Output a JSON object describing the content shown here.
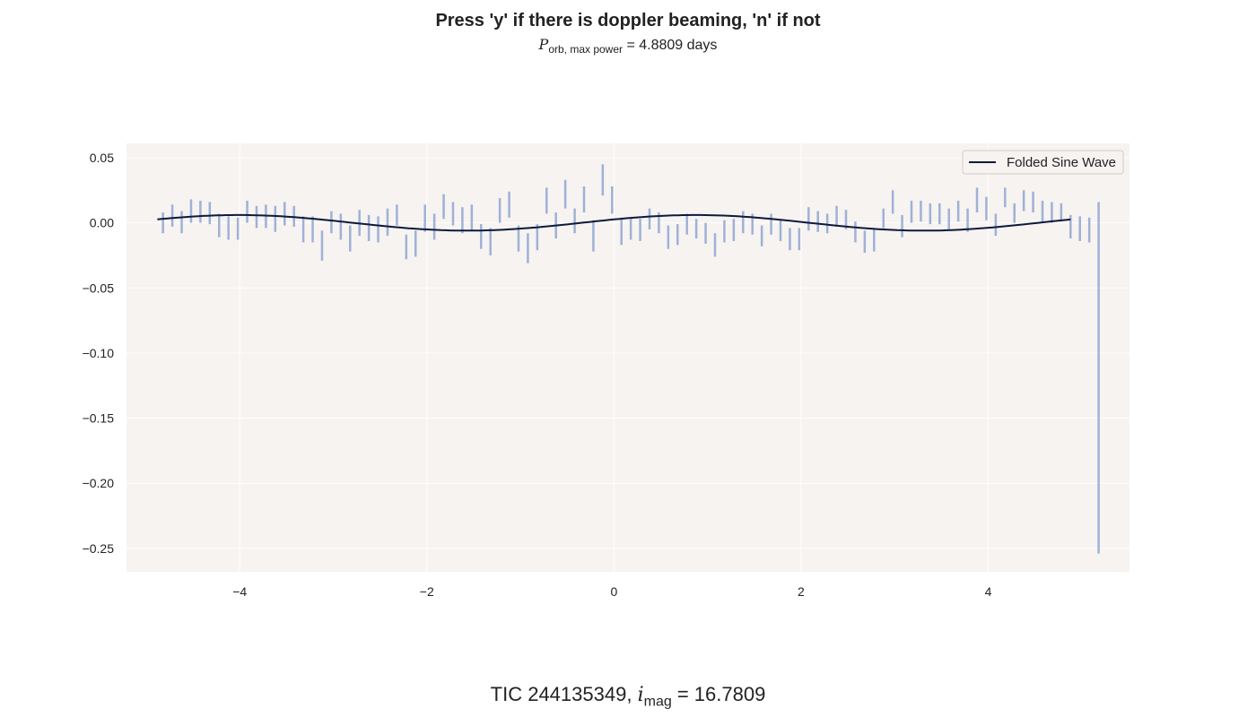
{
  "title": "Press 'y' if there is doppler beaming, 'n' if not",
  "subtitle": {
    "symbol": "P",
    "subscript": "orb, max power",
    "text": " = 4.8809 days"
  },
  "footer": {
    "prefix": "TIC 244135349, ",
    "symbol": "i",
    "subscript": "mag",
    "value": " = 16.7809"
  },
  "chart_data": {
    "type": "line",
    "xlim": [
      -5.21,
      5.51
    ],
    "ylim": [
      -0.268,
      0.061
    ],
    "x_ticks": [
      -4,
      -2,
      0,
      2,
      4
    ],
    "x_tick_labels": [
      "−4",
      "−2",
      "0",
      "2",
      "4"
    ],
    "y_ticks": [
      0.05,
      0.0,
      -0.05,
      -0.1,
      -0.15,
      -0.2,
      -0.25
    ],
    "y_tick_labels": [
      "0.05",
      "0.00",
      "−0.05",
      "−0.10",
      "−0.15",
      "−0.20",
      "−0.25"
    ],
    "grid": true,
    "legend_position": "top-right",
    "series": [
      {
        "name": "Folded Sine Wave",
        "type": "line",
        "color": "#0d1a3a",
        "amplitude": 0.006,
        "period": 4.8809,
        "x_range": [
          -4.88,
          4.88
        ]
      },
      {
        "name": "",
        "type": "errorbar",
        "color": "#9fb1d6",
        "points": [
          {
            "x": -4.82,
            "lo": -0.008,
            "hi": 0.008
          },
          {
            "x": -4.72,
            "lo": -0.003,
            "hi": 0.014
          },
          {
            "x": -4.62,
            "lo": -0.008,
            "hi": 0.009
          },
          {
            "x": -4.52,
            "lo": 0.0,
            "hi": 0.018
          },
          {
            "x": -4.42,
            "lo": 0.0,
            "hi": 0.017
          },
          {
            "x": -4.32,
            "lo": -0.001,
            "hi": 0.016
          },
          {
            "x": -4.22,
            "lo": -0.011,
            "hi": 0.007
          },
          {
            "x": -4.12,
            "lo": -0.013,
            "hi": 0.005
          },
          {
            "x": -4.02,
            "lo": -0.013,
            "hi": 0.004
          },
          {
            "x": -3.92,
            "lo": 0.0,
            "hi": 0.017
          },
          {
            "x": -3.82,
            "lo": -0.004,
            "hi": 0.013
          },
          {
            "x": -3.72,
            "lo": -0.004,
            "hi": 0.014
          },
          {
            "x": -3.62,
            "lo": -0.007,
            "hi": 0.013
          },
          {
            "x": -3.52,
            "lo": -0.002,
            "hi": 0.016
          },
          {
            "x": -3.42,
            "lo": -0.003,
            "hi": 0.013
          },
          {
            "x": -3.32,
            "lo": -0.015,
            "hi": 0.005
          },
          {
            "x": -3.22,
            "lo": -0.015,
            "hi": 0.005
          },
          {
            "x": -3.12,
            "lo": -0.029,
            "hi": -0.006
          },
          {
            "x": -3.02,
            "lo": -0.008,
            "hi": 0.009
          },
          {
            "x": -2.92,
            "lo": -0.013,
            "hi": 0.007
          },
          {
            "x": -2.82,
            "lo": -0.022,
            "hi": -0.002
          },
          {
            "x": -2.72,
            "lo": -0.01,
            "hi": 0.01
          },
          {
            "x": -2.62,
            "lo": -0.014,
            "hi": 0.006
          },
          {
            "x": -2.52,
            "lo": -0.015,
            "hi": 0.005
          },
          {
            "x": -2.42,
            "lo": -0.01,
            "hi": 0.011
          },
          {
            "x": -2.32,
            "lo": -0.002,
            "hi": 0.014
          },
          {
            "x": -2.22,
            "lo": -0.028,
            "hi": -0.009
          },
          {
            "x": -2.12,
            "lo": -0.026,
            "hi": -0.006
          },
          {
            "x": -2.02,
            "lo": -0.007,
            "hi": 0.014
          },
          {
            "x": -1.92,
            "lo": -0.013,
            "hi": 0.007
          },
          {
            "x": -1.82,
            "lo": 0.003,
            "hi": 0.022
          },
          {
            "x": -1.72,
            "lo": -0.002,
            "hi": 0.016
          },
          {
            "x": -1.62,
            "lo": -0.008,
            "hi": 0.012
          },
          {
            "x": -1.52,
            "lo": -0.006,
            "hi": 0.014
          },
          {
            "x": -1.42,
            "lo": -0.02,
            "hi": -0.001
          },
          {
            "x": -1.32,
            "lo": -0.025,
            "hi": -0.004
          },
          {
            "x": -1.22,
            "lo": 0.0,
            "hi": 0.019
          },
          {
            "x": -1.12,
            "lo": 0.004,
            "hi": 0.024
          },
          {
            "x": -1.02,
            "lo": -0.022,
            "hi": -0.002
          },
          {
            "x": -0.92,
            "lo": -0.031,
            "hi": -0.008
          },
          {
            "x": -0.82,
            "lo": -0.021,
            "hi": -0.001
          },
          {
            "x": -0.72,
            "lo": 0.007,
            "hi": 0.027
          },
          {
            "x": -0.62,
            "lo": -0.012,
            "hi": 0.008
          },
          {
            "x": -0.52,
            "lo": 0.011,
            "hi": 0.033
          },
          {
            "x": -0.42,
            "lo": -0.008,
            "hi": 0.011
          },
          {
            "x": -0.32,
            "lo": 0.008,
            "hi": 0.028
          },
          {
            "x": -0.22,
            "lo": -0.022,
            "hi": 0.002
          },
          {
            "x": -0.12,
            "lo": 0.021,
            "hi": 0.045
          },
          {
            "x": -0.02,
            "lo": 0.007,
            "hi": 0.028
          },
          {
            "x": 0.08,
            "lo": -0.017,
            "hi": 0.004
          },
          {
            "x": 0.18,
            "lo": -0.013,
            "hi": 0.004
          },
          {
            "x": 0.28,
            "lo": -0.014,
            "hi": 0.003
          },
          {
            "x": 0.38,
            "lo": -0.005,
            "hi": 0.011
          },
          {
            "x": 0.48,
            "lo": -0.008,
            "hi": 0.008
          },
          {
            "x": 0.58,
            "lo": -0.02,
            "hi": -0.002
          },
          {
            "x": 0.68,
            "lo": -0.017,
            "hi": -0.001
          },
          {
            "x": 0.78,
            "lo": -0.009,
            "hi": 0.007
          },
          {
            "x": 0.88,
            "lo": -0.012,
            "hi": 0.003
          },
          {
            "x": 0.98,
            "lo": -0.016,
            "hi": 0.0
          },
          {
            "x": 1.08,
            "lo": -0.026,
            "hi": -0.008
          },
          {
            "x": 1.18,
            "lo": -0.015,
            "hi": 0.002
          },
          {
            "x": 1.28,
            "lo": -0.014,
            "hi": 0.003
          },
          {
            "x": 1.38,
            "lo": -0.008,
            "hi": 0.009
          },
          {
            "x": 1.48,
            "lo": -0.009,
            "hi": 0.007
          },
          {
            "x": 1.58,
            "lo": -0.018,
            "hi": -0.002
          },
          {
            "x": 1.68,
            "lo": -0.009,
            "hi": 0.007
          },
          {
            "x": 1.78,
            "lo": -0.014,
            "hi": 0.002
          },
          {
            "x": 1.88,
            "lo": -0.021,
            "hi": -0.004
          },
          {
            "x": 1.98,
            "lo": -0.021,
            "hi": -0.004
          },
          {
            "x": 2.08,
            "lo": -0.006,
            "hi": 0.012
          },
          {
            "x": 2.18,
            "lo": -0.007,
            "hi": 0.009
          },
          {
            "x": 2.28,
            "lo": -0.008,
            "hi": 0.007
          },
          {
            "x": 2.38,
            "lo": -0.003,
            "hi": 0.013
          },
          {
            "x": 2.48,
            "lo": -0.005,
            "hi": 0.01
          },
          {
            "x": 2.58,
            "lo": -0.015,
            "hi": 0.001
          },
          {
            "x": 2.68,
            "lo": -0.023,
            "hi": -0.006
          },
          {
            "x": 2.78,
            "lo": -0.022,
            "hi": -0.004
          },
          {
            "x": 2.88,
            "lo": -0.004,
            "hi": 0.011
          },
          {
            "x": 2.98,
            "lo": 0.007,
            "hi": 0.025
          },
          {
            "x": 3.08,
            "lo": -0.011,
            "hi": 0.006
          },
          {
            "x": 3.18,
            "lo": 0.0,
            "hi": 0.017
          },
          {
            "x": 3.28,
            "lo": 0.001,
            "hi": 0.017
          },
          {
            "x": 3.38,
            "lo": -0.001,
            "hi": 0.015
          },
          {
            "x": 3.48,
            "lo": -0.001,
            "hi": 0.015
          },
          {
            "x": 3.58,
            "lo": -0.005,
            "hi": 0.011
          },
          {
            "x": 3.68,
            "lo": 0.001,
            "hi": 0.017
          },
          {
            "x": 3.78,
            "lo": -0.007,
            "hi": 0.011
          },
          {
            "x": 3.88,
            "lo": 0.008,
            "hi": 0.027
          },
          {
            "x": 3.98,
            "lo": 0.002,
            "hi": 0.02
          },
          {
            "x": 4.08,
            "lo": -0.01,
            "hi": 0.007
          },
          {
            "x": 4.18,
            "lo": 0.012,
            "hi": 0.027
          },
          {
            "x": 4.28,
            "lo": 0.0,
            "hi": 0.015
          },
          {
            "x": 4.38,
            "lo": 0.009,
            "hi": 0.025
          },
          {
            "x": 4.48,
            "lo": 0.008,
            "hi": 0.024
          },
          {
            "x": 4.58,
            "lo": 0.001,
            "hi": 0.017
          },
          {
            "x": 4.68,
            "lo": 0.0,
            "hi": 0.016
          },
          {
            "x": 4.78,
            "lo": 0.001,
            "hi": 0.015
          },
          {
            "x": 4.88,
            "lo": -0.012,
            "hi": 0.006
          },
          {
            "x": 4.98,
            "lo": -0.014,
            "hi": 0.005
          },
          {
            "x": 5.08,
            "lo": -0.015,
            "hi": 0.004
          },
          {
            "x": 5.18,
            "lo": -0.254,
            "hi": 0.016
          }
        ]
      }
    ]
  }
}
